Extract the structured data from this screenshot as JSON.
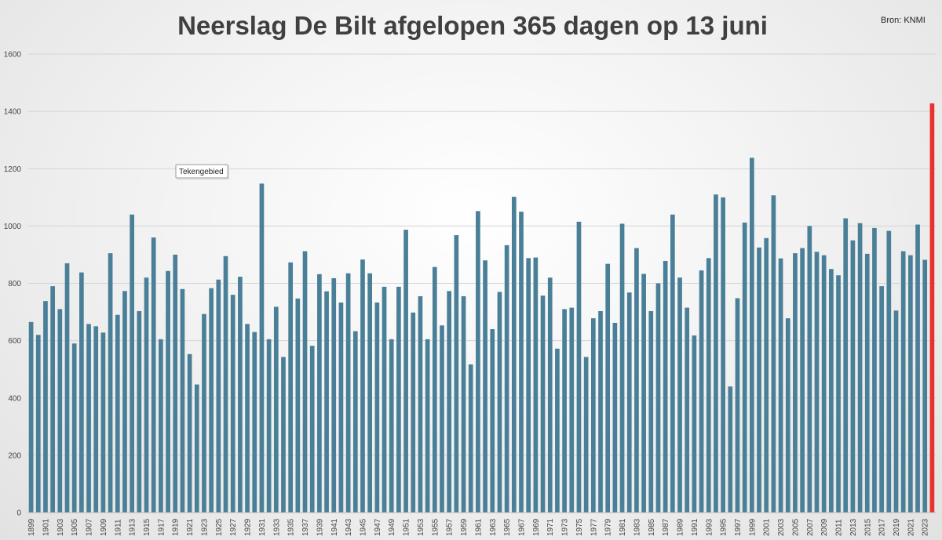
{
  "chart_data": {
    "type": "bar",
    "title": "Neerslag De Bilt afgelopen 365 dagen op 13 juni",
    "source": "Bron: KNMI",
    "tooltip": "Tekengebied",
    "xlabel": "",
    "ylabel": "",
    "ylim": [
      0,
      1600
    ],
    "yticks": [
      0,
      200,
      400,
      600,
      800,
      1000,
      1200,
      1400,
      1600
    ],
    "grid": true,
    "start_year": 1899,
    "colors": {
      "bar": "#4a7f98",
      "highlight": "#e8322d"
    },
    "highlight_year": 2024,
    "categories": [
      "1899",
      "1900",
      "1901",
      "1902",
      "1903",
      "1904",
      "1905",
      "1906",
      "1907",
      "1908",
      "1909",
      "1910",
      "1911",
      "1912",
      "1913",
      "1914",
      "1915",
      "1916",
      "1917",
      "1918",
      "1919",
      "1920",
      "1921",
      "1922",
      "1923",
      "1924",
      "1925",
      "1926",
      "1927",
      "1928",
      "1929",
      "1930",
      "1931",
      "1932",
      "1933",
      "1934",
      "1935",
      "1936",
      "1937",
      "1938",
      "1939",
      "1940",
      "1941",
      "1942",
      "1943",
      "1944",
      "1945",
      "1946",
      "1947",
      "1948",
      "1949",
      "1950",
      "1951",
      "1952",
      "1953",
      "1954",
      "1955",
      "1956",
      "1957",
      "1958",
      "1959",
      "1960",
      "1961",
      "1962",
      "1963",
      "1964",
      "1965",
      "1966",
      "1967",
      "1968",
      "1969",
      "1970",
      "1971",
      "1972",
      "1973",
      "1974",
      "1975",
      "1976",
      "1977",
      "1978",
      "1979",
      "1980",
      "1981",
      "1982",
      "1983",
      "1984",
      "1985",
      "1986",
      "1987",
      "1988",
      "1989",
      "1990",
      "1991",
      "1992",
      "1993",
      "1994",
      "1995",
      "1996",
      "1997",
      "1998",
      "1999",
      "2000",
      "2001",
      "2002",
      "2003",
      "2004",
      "2005",
      "2006",
      "2007",
      "2008",
      "2009",
      "2010",
      "2011",
      "2012",
      "2013",
      "2014",
      "2015",
      "2016",
      "2017",
      "2018",
      "2019",
      "2020",
      "2021",
      "2022",
      "2023",
      "2024"
    ],
    "values": [
      665,
      620,
      738,
      790,
      710,
      870,
      590,
      838,
      658,
      650,
      628,
      905,
      690,
      773,
      1040,
      703,
      820,
      960,
      605,
      843,
      900,
      780,
      553,
      447,
      693,
      783,
      813,
      895,
      760,
      823,
      658,
      630,
      1148,
      605,
      718,
      543,
      873,
      747,
      912,
      582,
      832,
      772,
      818,
      733,
      835,
      633,
      883,
      835,
      733,
      788,
      605,
      788,
      987,
      698,
      755,
      605,
      857,
      653,
      773,
      968,
      755,
      517,
      1052,
      880,
      640,
      770,
      933,
      1102,
      1050,
      888,
      890,
      757,
      820,
      572,
      710,
      715,
      1015,
      543,
      678,
      703,
      868,
      662,
      1008,
      768,
      923,
      833,
      703,
      800,
      878,
      1040,
      820,
      715,
      618,
      845,
      888,
      1110,
      1100,
      440,
      748,
      1012,
      1238,
      925,
      958,
      1107,
      887,
      678,
      905,
      923,
      1000,
      910,
      898,
      850,
      828,
      1027,
      950,
      1010,
      903,
      993,
      790,
      983,
      705,
      912,
      898,
      1005,
      882,
      1428
    ]
  }
}
